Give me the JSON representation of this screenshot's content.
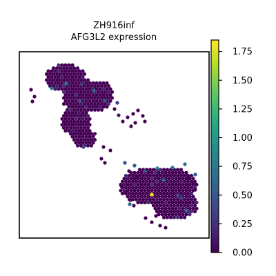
{
  "chart_data": {
    "type": "scatter",
    "title_line1": "ZH916inf",
    "title_line2": "AFG3L2 expression",
    "xlabel": "",
    "ylabel": "",
    "grid": false,
    "colormap": "viridis",
    "colorbar": {
      "range": [
        0.0,
        1.85
      ],
      "ticks": [
        0.0,
        0.25,
        0.5,
        0.75,
        1.0,
        1.25,
        1.5,
        1.75
      ],
      "tick_labels": [
        "0.00",
        "0.25",
        "0.50",
        "0.75",
        "1.00",
        "1.25",
        "1.50",
        "1.75"
      ]
    },
    "highlight_points": [
      {
        "value": 1.85,
        "note": "max expression spot"
      },
      {
        "value": 0.75
      },
      {
        "value": 0.75
      },
      {
        "value": 0.75
      },
      {
        "value": 0.7
      },
      {
        "value": 0.7
      },
      {
        "value": 0.65
      },
      {
        "value": 0.65
      },
      {
        "value": 0.6
      },
      {
        "value": 0.6
      },
      {
        "value": 0.6
      },
      {
        "value": 0.55
      },
      {
        "value": 0.55
      },
      {
        "value": 0.5
      },
      {
        "value": 0.5
      },
      {
        "value": 0.45
      },
      {
        "value": 0.45
      },
      {
        "value": 0.4
      },
      {
        "value": 0.4
      },
      {
        "value": 0.35
      },
      {
        "value": 0.35
      }
    ]
  }
}
